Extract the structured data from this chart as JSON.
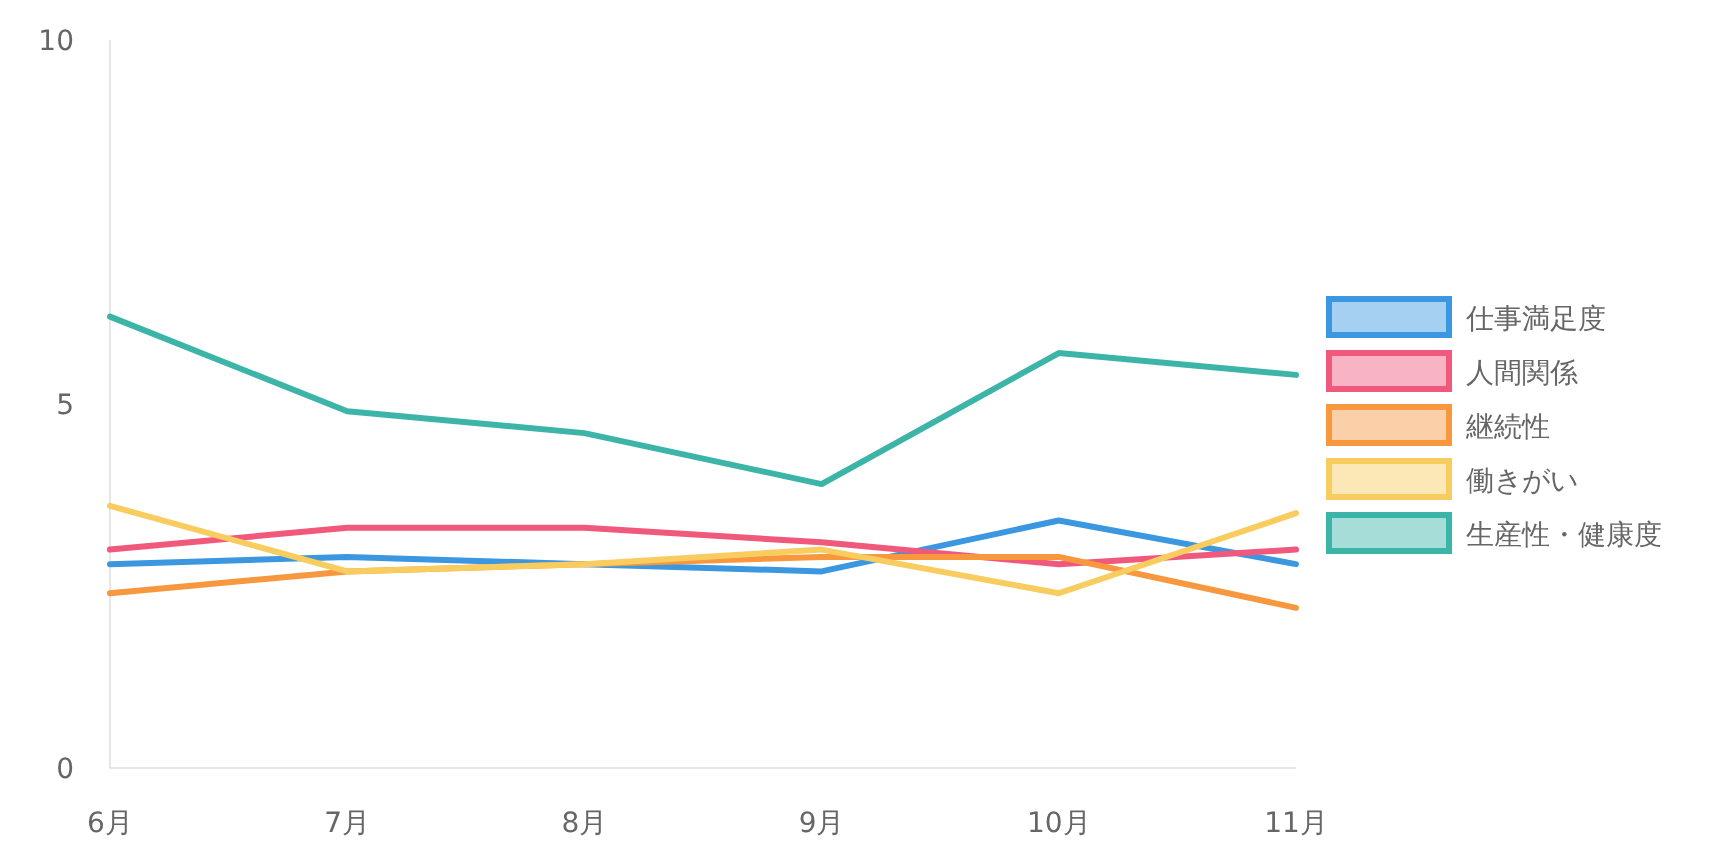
{
  "chart_data": {
    "type": "line",
    "categories": [
      "6月",
      "7月",
      "8月",
      "9月",
      "10月",
      "11月"
    ],
    "ylim": [
      0,
      10
    ],
    "yticks": [
      0,
      5,
      10
    ],
    "grid": false,
    "legend": "right",
    "marker": "none",
    "line_style": "solid",
    "series": [
      {
        "name": "仕事満足度",
        "color": "#3a97e0",
        "values": [
          2.8,
          2.9,
          2.8,
          2.7,
          3.4,
          2.8
        ]
      },
      {
        "name": "人間関係",
        "color": "#f0587c",
        "values": [
          3.0,
          3.3,
          3.3,
          3.1,
          2.8,
          3.0
        ]
      },
      {
        "name": "継続性",
        "color": "#f7973e",
        "values": [
          2.4,
          2.7,
          2.8,
          2.9,
          2.9,
          2.2
        ]
      },
      {
        "name": "働きがい",
        "color": "#f9cc60",
        "values": [
          3.6,
          2.7,
          2.8,
          3.0,
          2.4,
          3.5
        ]
      },
      {
        "name": "生産性・健康度",
        "color": "#3cb4a8",
        "values": [
          6.2,
          4.9,
          4.6,
          3.9,
          5.7,
          5.4
        ]
      }
    ]
  }
}
